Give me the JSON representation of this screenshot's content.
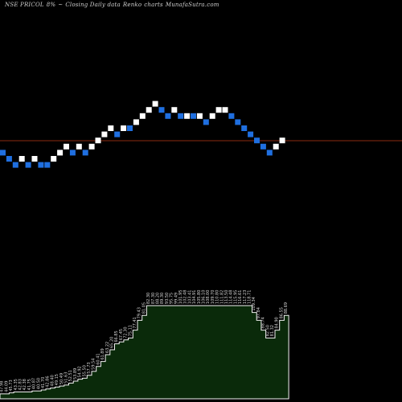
{
  "header": {
    "symbol": "NSE PRICOL",
    "pct": "8%",
    "sep": "~",
    "type": "Closing Daily data",
    "kind": "Renko",
    "charts": "charts",
    "site": "MunafaSutra.com"
  },
  "colors": {
    "background": "#000000",
    "up_brick": "#ffffff",
    "down_brick": "#1f6fe0",
    "reference_line": "#8b2a10",
    "volume_fill": "#0a2a0a",
    "volume_edge": "#f2f2f2"
  },
  "chart_data": {
    "type": "renko",
    "title": "",
    "xlabel": "",
    "ylabel": "",
    "grid": false,
    "brick_size_levels": 1,
    "reference_level": 0,
    "bricks": [
      {
        "dir": "down",
        "level": -4
      },
      {
        "dir": "down",
        "level": -5
      },
      {
        "dir": "down",
        "level": -6
      },
      {
        "dir": "up",
        "level": -5
      },
      {
        "dir": "down",
        "level": -6
      },
      {
        "dir": "up",
        "level": -5
      },
      {
        "dir": "down",
        "level": -6
      },
      {
        "dir": "down",
        "level": -6
      },
      {
        "dir": "up",
        "level": -5
      },
      {
        "dir": "up",
        "level": -4
      },
      {
        "dir": "up",
        "level": -3
      },
      {
        "dir": "down",
        "level": -4
      },
      {
        "dir": "up",
        "level": -3
      },
      {
        "dir": "down",
        "level": -4
      },
      {
        "dir": "up",
        "level": -3
      },
      {
        "dir": "up",
        "level": -2
      },
      {
        "dir": "up",
        "level": -1
      },
      {
        "dir": "up",
        "level": 0
      },
      {
        "dir": "down",
        "level": -1
      },
      {
        "dir": "up",
        "level": 0
      },
      {
        "dir": "down",
        "level": 0
      },
      {
        "dir": "up",
        "level": 1
      },
      {
        "dir": "up",
        "level": 2
      },
      {
        "dir": "up",
        "level": 3
      },
      {
        "dir": "up",
        "level": 4
      },
      {
        "dir": "down",
        "level": 3
      },
      {
        "dir": "down",
        "level": 2
      },
      {
        "dir": "up",
        "level": 3
      },
      {
        "dir": "down",
        "level": 2
      },
      {
        "dir": "up",
        "level": 2
      },
      {
        "dir": "down",
        "level": 2
      },
      {
        "dir": "up",
        "level": 2
      },
      {
        "dir": "down",
        "level": 1
      },
      {
        "dir": "up",
        "level": 2
      },
      {
        "dir": "up",
        "level": 3
      },
      {
        "dir": "up",
        "level": 3
      },
      {
        "dir": "down",
        "level": 2
      },
      {
        "dir": "down",
        "level": 1
      },
      {
        "dir": "down",
        "level": 0
      },
      {
        "dir": "down",
        "level": -1
      },
      {
        "dir": "down",
        "level": -2
      },
      {
        "dir": "down",
        "level": -3
      },
      {
        "dir": "down",
        "level": -4
      },
      {
        "dir": "up",
        "level": -3
      },
      {
        "dir": "up",
        "level": -2
      }
    ],
    "volume": {
      "values": [
        5,
        5,
        6,
        7,
        7,
        7,
        7,
        8,
        8,
        9,
        10,
        11,
        12,
        13,
        14,
        16,
        18,
        20,
        21,
        24,
        28,
        33,
        38,
        45,
        50,
        56,
        58,
        60,
        62,
        70,
        80,
        85,
        95,
        95,
        95,
        95,
        95,
        95,
        95,
        95,
        95,
        95,
        95,
        95,
        95,
        95,
        95,
        95,
        95,
        95,
        95,
        95,
        95,
        95,
        95,
        88,
        80,
        70,
        62,
        62,
        70,
        80,
        85
      ],
      "labels": [
        "47.98",
        "44.09",
        "45.73",
        "43.35",
        "42.83",
        "42.38",
        "41.75",
        "40.87",
        "40.50",
        "41.70",
        "42.86",
        "48.40",
        "49.15",
        "50.49",
        "51.63",
        "52.51",
        "53.89",
        "54.92",
        "55.50",
        "57.73",
        "59.54",
        "60.41",
        "61.89",
        "63.22",
        "65.20",
        "66.85",
        "67.45",
        "72.30",
        "75.11",
        "77.41",
        "79.43",
        "81.05",
        "82.30",
        "87.30",
        "88.20",
        "89.30",
        "93.50",
        "95.75",
        "99.49",
        "101.95",
        "102.48",
        "103.41",
        "104.91",
        "105.80",
        "106.10",
        "108.00",
        "109.70",
        "110.80",
        "111.82",
        "113.50",
        "114.48",
        "115.95",
        "116.61",
        "117.23",
        "118.71",
        "109.34",
        "97.84",
        "88.74",
        "82.50",
        "81.32",
        "84.90",
        "86.55",
        "88.69"
      ]
    }
  }
}
